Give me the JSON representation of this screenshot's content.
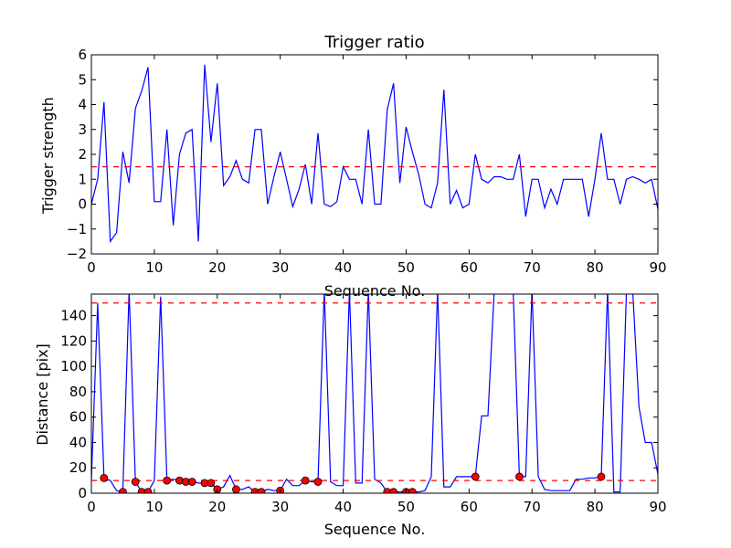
{
  "chart_data": [
    {
      "type": "line",
      "title": "Trigger ratio",
      "xlabel": "Sequence No.",
      "ylabel": "Trigger strength",
      "xlim": [
        0,
        90
      ],
      "ylim": [
        -2,
        6
      ],
      "xticks": [
        0,
        10,
        20,
        30,
        40,
        50,
        60,
        70,
        80,
        90
      ],
      "yticks": [
        -2,
        -1,
        0,
        1,
        2,
        3,
        4,
        5,
        6
      ],
      "grid": false,
      "series": [
        {
          "color": "#0000ff",
          "x": [
            0,
            1,
            2,
            3,
            4,
            5,
            6,
            7,
            8,
            9,
            10,
            11,
            12,
            13,
            14,
            15,
            16,
            17,
            18,
            19,
            20,
            21,
            22,
            23,
            24,
            25,
            26,
            27,
            28,
            29,
            30,
            31,
            32,
            33,
            34,
            35,
            36,
            37,
            38,
            39,
            40,
            41,
            42,
            43,
            44,
            45,
            46,
            47,
            48,
            49,
            50,
            51,
            52,
            53,
            54,
            55,
            56,
            57,
            58,
            59,
            60,
            61,
            62,
            63,
            64,
            65,
            66,
            67,
            68,
            69,
            70,
            71,
            72,
            73,
            74,
            75,
            76,
            77,
            78,
            79,
            80,
            81,
            82,
            83,
            84,
            85,
            86,
            87,
            88,
            89,
            90
          ],
          "values": [
            0,
            1.0,
            4.1,
            -1.5,
            -1.15,
            2.1,
            0.85,
            3.85,
            4.55,
            5.5,
            0.1,
            0.1,
            3.0,
            -0.85,
            2.0,
            2.85,
            3.0,
            -1.5,
            5.6,
            2.5,
            4.85,
            0.75,
            1.1,
            1.75,
            1.0,
            0.85,
            3.0,
            3.0,
            0,
            1.1,
            2.1,
            1.0,
            -0.1,
            0.6,
            1.6,
            0,
            2.85,
            0,
            -0.1,
            0.1,
            1.5,
            1.0,
            1.0,
            0,
            3.0,
            0,
            0,
            3.8,
            4.85,
            0.85,
            3.1,
            2.1,
            1.2,
            0,
            -0.15,
            0.85,
            4.6,
            0,
            0.55,
            -0.15,
            0,
            2.0,
            1.0,
            0.85,
            1.1,
            1.1,
            1.0,
            1.0,
            2.0,
            -0.5,
            1.0,
            1.0,
            -0.15,
            0.6,
            0,
            1.0,
            1.0,
            1.0,
            1.0,
            -0.5,
            1.0,
            2.85,
            1.0,
            1.0,
            0,
            1.0,
            1.1,
            1.0,
            0.85,
            1.0,
            -0.2
          ]
        }
      ],
      "hlines": [
        {
          "y": 1.5,
          "color": "#ff0000",
          "style": "dashed"
        }
      ]
    },
    {
      "type": "line",
      "title": "",
      "xlabel": "Sequence No.",
      "ylabel": "Distance [pix]",
      "xlim": [
        0,
        90
      ],
      "ylim": [
        0,
        157
      ],
      "xticks": [
        0,
        10,
        20,
        30,
        40,
        50,
        60,
        70,
        80,
        90
      ],
      "yticks": [
        0,
        20,
        40,
        60,
        80,
        100,
        120,
        140
      ],
      "grid": false,
      "series": [
        {
          "color": "#0000ff",
          "x": [
            0,
            1,
            2,
            3,
            4,
            5,
            6,
            7,
            8,
            9,
            10,
            11,
            12,
            13,
            14,
            15,
            16,
            17,
            18,
            19,
            20,
            21,
            22,
            23,
            24,
            25,
            26,
            27,
            28,
            29,
            30,
            31,
            32,
            33,
            34,
            35,
            36,
            37,
            38,
            39,
            40,
            41,
            42,
            43,
            44,
            45,
            46,
            47,
            48,
            49,
            50,
            51,
            52,
            53,
            54,
            55,
            56,
            57,
            58,
            59,
            60,
            61,
            62,
            63,
            64,
            65,
            66,
            67,
            68,
            69,
            70,
            71,
            72,
            73,
            74,
            75,
            76,
            77,
            78,
            79,
            80,
            81,
            82,
            83,
            84,
            85,
            86,
            87,
            88,
            89,
            90
          ],
          "values": [
            10,
            150,
            12,
            10,
            2,
            1,
            160,
            9,
            1,
            1,
            10,
            155,
            10,
            11,
            10,
            9,
            9,
            8,
            8,
            8,
            3,
            5,
            14,
            3,
            3,
            5,
            1,
            1,
            3,
            2,
            2,
            11,
            6,
            6,
            10,
            9,
            9,
            160,
            9,
            6,
            6,
            160,
            8,
            8,
            160,
            11,
            8,
            1,
            1,
            1,
            1,
            1,
            1,
            2,
            13,
            160,
            5,
            5,
            13,
            13,
            13,
            13,
            61,
            61,
            160,
            160,
            160,
            160,
            13,
            13,
            160,
            13,
            3,
            2,
            2,
            2,
            2,
            11,
            11,
            12,
            12,
            13,
            160,
            1,
            1,
            160,
            160,
            68,
            40,
            40,
            15
          ],
          "markers": {
            "color": "#ff0000",
            "edge": "#000000",
            "x": [
              2,
              5,
              7,
              8,
              9,
              12,
              14,
              15,
              16,
              18,
              19,
              20,
              23,
              26,
              27,
              30,
              34,
              36,
              47,
              48,
              50,
              51,
              61,
              68,
              81
            ],
            "y": [
              12,
              1,
              9,
              1,
              1,
              10,
              10,
              9,
              9,
              8,
              8,
              3,
              3,
              1,
              1,
              2,
              10,
              9,
              1,
              1,
              1,
              1,
              13,
              13,
              13
            ]
          }
        }
      ],
      "hlines": [
        {
          "y": 150,
          "color": "#ff0000",
          "style": "dashed"
        },
        {
          "y": 10,
          "color": "#ff0000",
          "style": "dashed"
        }
      ]
    }
  ]
}
